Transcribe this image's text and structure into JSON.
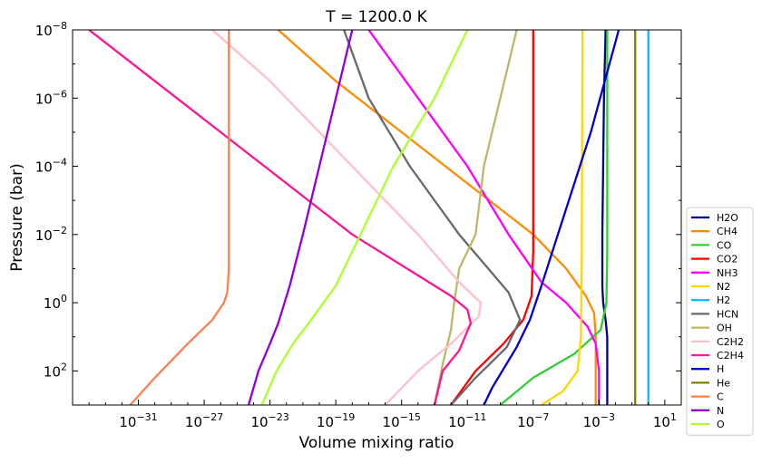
{
  "chart_data": {
    "type": "line",
    "title": "T = 1200.0 K",
    "xlabel": "Volume mixing ratio",
    "ylabel": "Pressure (bar)",
    "x_scale": "log",
    "y_scale": "log",
    "y_inverted": true,
    "xlim": [
      1e-35,
      100.0
    ],
    "ylim": [
      1000,
      1e-08
    ],
    "grid": false,
    "legend_position": "lower right, outside plot",
    "x_ticks": [
      {
        "exp": -31,
        "base": "10",
        "sup": "−31"
      },
      {
        "exp": -27,
        "base": "10",
        "sup": "−27"
      },
      {
        "exp": -23,
        "base": "10",
        "sup": "−23"
      },
      {
        "exp": -19,
        "base": "10",
        "sup": "−19"
      },
      {
        "exp": -15,
        "base": "10",
        "sup": "−15"
      },
      {
        "exp": -11,
        "base": "10",
        "sup": "−11"
      },
      {
        "exp": -7,
        "base": "10",
        "sup": "−7"
      },
      {
        "exp": -3,
        "base": "10",
        "sup": "−3"
      },
      {
        "exp": 1,
        "base": "10",
        "sup": "1"
      }
    ],
    "y_ticks": [
      {
        "exp": -8,
        "base": "10",
        "sup": "−8"
      },
      {
        "exp": -6,
        "base": "10",
        "sup": "−6"
      },
      {
        "exp": -4,
        "base": "10",
        "sup": "−4"
      },
      {
        "exp": -2,
        "base": "10",
        "sup": "−2"
      },
      {
        "exp": 0,
        "base": "10",
        "sup": "0"
      },
      {
        "exp": 2,
        "base": "10",
        "sup": "2"
      }
    ],
    "series": [
      {
        "name": "H2O",
        "color": "#000080",
        "points": [
          [
            -2.6,
            -8
          ],
          [
            -2.7,
            -6
          ],
          [
            -2.75,
            -4
          ],
          [
            -2.8,
            -2
          ],
          [
            -2.8,
            -0.5
          ],
          [
            -2.75,
            0
          ],
          [
            -2.6,
            0.5
          ],
          [
            -2.5,
            1.0
          ],
          [
            -2.5,
            3.0
          ]
        ]
      },
      {
        "name": "CH4",
        "color": "#ff8c00",
        "points": [
          [
            -22.5,
            -8
          ],
          [
            -19,
            -6.5
          ],
          [
            -15,
            -5
          ],
          [
            -11,
            -3.5
          ],
          [
            -7,
            -2
          ],
          [
            -5,
            -1
          ],
          [
            -3.8,
            -0.2
          ],
          [
            -3.3,
            0.3
          ],
          [
            -3.2,
            1.0
          ],
          [
            -3.2,
            3.0
          ]
        ]
      },
      {
        "name": "CO",
        "color": "#32cd32",
        "points": [
          [
            -2.5,
            -8
          ],
          [
            -2.5,
            -1.5
          ],
          [
            -2.55,
            0
          ],
          [
            -2.9,
            0.8
          ],
          [
            -4.5,
            1.5
          ],
          [
            -7,
            2.2
          ],
          [
            -9,
            3.0
          ]
        ]
      },
      {
        "name": "CO2",
        "color": "#ff0000",
        "points": [
          [
            -7.0,
            -8
          ],
          [
            -7.0,
            -1.5
          ],
          [
            -7.1,
            -0.2
          ],
          [
            -7.6,
            0.5
          ],
          [
            -8.8,
            1.2
          ],
          [
            -10.5,
            2.0
          ],
          [
            -12.0,
            3.0
          ]
        ]
      },
      {
        "name": "NH3",
        "color": "#ff00ff",
        "points": [
          [
            -17,
            -8
          ],
          [
            -14,
            -6
          ],
          [
            -11,
            -4
          ],
          [
            -8.5,
            -2
          ],
          [
            -6.5,
            -0.6
          ],
          [
            -5,
            0
          ],
          [
            -3.7,
            0.7
          ],
          [
            -3.2,
            1.2
          ],
          [
            -3,
            2
          ],
          [
            -3,
            3.0
          ]
        ]
      },
      {
        "name": "N2",
        "color": "#ffd700",
        "points": [
          [
            -4.0,
            -8
          ],
          [
            -4.05,
            -1.5
          ],
          [
            -4.1,
            1.0
          ],
          [
            -4.3,
            2.0
          ],
          [
            -5.2,
            2.6
          ],
          [
            -6.5,
            3.0
          ]
        ]
      },
      {
        "name": "H2",
        "color": "#00bfff",
        "points": [
          [
            0.0,
            -8
          ],
          [
            0.0,
            3.0
          ]
        ]
      },
      {
        "name": "HCN",
        "color": "#696969",
        "points": [
          [
            -18.5,
            -8
          ],
          [
            -17,
            -6
          ],
          [
            -14.5,
            -4
          ],
          [
            -11.5,
            -2
          ],
          [
            -8.5,
            -0.3
          ],
          [
            -7.8,
            0.5
          ],
          [
            -8.6,
            1.3
          ],
          [
            -10.5,
            2.2
          ],
          [
            -12,
            3.0
          ]
        ]
      },
      {
        "name": "OH",
        "color": "#bdb76b",
        "points": [
          [
            -8,
            -8
          ],
          [
            -9,
            -6
          ],
          [
            -10,
            -4
          ],
          [
            -10.5,
            -2
          ],
          [
            -11.5,
            -1
          ],
          [
            -11.8,
            0
          ],
          [
            -12,
            0.8
          ],
          [
            -12.5,
            1.8
          ],
          [
            -13,
            3.0
          ]
        ]
      },
      {
        "name": "C2H2",
        "color": "#ffc0cb",
        "points": [
          [
            -26.5,
            -8
          ],
          [
            -23,
            -6.5
          ],
          [
            -20,
            -5
          ],
          [
            -17,
            -3.5
          ],
          [
            -14,
            -2
          ],
          [
            -11.5,
            -0.6
          ],
          [
            -10.2,
            0
          ],
          [
            -10.3,
            0.4
          ],
          [
            -12,
            1.2
          ],
          [
            -14,
            2.0
          ],
          [
            -16,
            3.0
          ]
        ]
      },
      {
        "name": "C2H4",
        "color": "#ff1493",
        "points": [
          [
            -34,
            -8
          ],
          [
            -26,
            -5
          ],
          [
            -18,
            -2
          ],
          [
            -14,
            -0.8
          ],
          [
            -12,
            -0.2
          ],
          [
            -11,
            0.2
          ],
          [
            -10.8,
            0.6
          ],
          [
            -11.5,
            1.4
          ],
          [
            -12.5,
            2.0
          ],
          [
            -13,
            3.0
          ]
        ]
      },
      {
        "name": "H",
        "color": "#0000cd",
        "points": [
          [
            -1.8,
            -8
          ],
          [
            -3.5,
            -5
          ],
          [
            -5.5,
            -2
          ],
          [
            -6.5,
            -0.5
          ],
          [
            -7.2,
            0.5
          ],
          [
            -8,
            1.3
          ],
          [
            -9.5,
            2.5
          ],
          [
            -10,
            3.0
          ]
        ]
      },
      {
        "name": "He",
        "color": "#808000",
        "points": [
          [
            -0.8,
            -8
          ],
          [
            -0.8,
            3.0
          ]
        ]
      },
      {
        "name": "C",
        "color": "#ff7f50",
        "points": [
          [
            -25.5,
            -8
          ],
          [
            -25.5,
            -2
          ],
          [
            -25.5,
            -1
          ],
          [
            -25.6,
            -0.3
          ],
          [
            -25.8,
            0
          ],
          [
            -26.5,
            0.5
          ],
          [
            -28,
            1.2
          ],
          [
            -30,
            2.2
          ],
          [
            -31.5,
            3.0
          ]
        ]
      },
      {
        "name": "N",
        "color": "#9400d3",
        "points": [
          [
            -18,
            -8
          ],
          [
            -19,
            -6
          ],
          [
            -20,
            -4
          ],
          [
            -21,
            -2
          ],
          [
            -21.8,
            -0.5
          ],
          [
            -22.5,
            0.6
          ],
          [
            -23,
            1.2
          ],
          [
            -23.7,
            2.0
          ],
          [
            -24.3,
            3.0
          ]
        ]
      },
      {
        "name": "O",
        "color": "#adff2f",
        "points": [
          [
            -11,
            -8
          ],
          [
            -13,
            -6
          ],
          [
            -15.5,
            -4
          ],
          [
            -17.5,
            -2
          ],
          [
            -19,
            -0.5
          ],
          [
            -20.5,
            0.5
          ],
          [
            -21.6,
            1.2
          ],
          [
            -22.6,
            2.0
          ],
          [
            -23.5,
            3.0
          ]
        ]
      }
    ]
  }
}
